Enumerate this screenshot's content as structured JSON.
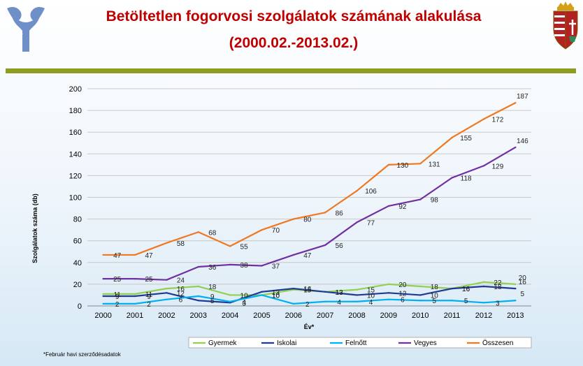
{
  "slide": {
    "title_line1": "Betöltetlen fogorvosi szolgálatok számának alakulása",
    "title_line2": "(2000.02.-2013.02.)",
    "footnote": "*Február  havi szerződésadatok"
  },
  "colors": {
    "title": "#c00000",
    "divider": "#8f9c22",
    "logo": "#6e8fc8"
  },
  "icons": {
    "left_logo": "stylized-tooth-logo-icon",
    "right_logo": "hungarian-coat-of-arms-icon"
  },
  "chart_data": {
    "type": "line",
    "title": "",
    "xlabel": "Év*",
    "ylabel": "Szolgálatok  száma (db)",
    "x": [
      "2000",
      "2001",
      "2002",
      "2003",
      "2004",
      "2005",
      "2006",
      "2007",
      "2008",
      "2009",
      "2010",
      "2011",
      "2012",
      "2013"
    ],
    "ylim": [
      0,
      200
    ],
    "yticks": [
      0,
      20,
      40,
      60,
      80,
      100,
      120,
      140,
      160,
      180,
      200
    ],
    "grid": true,
    "legend_position": "bottom",
    "series": [
      {
        "name": "Gyermek",
        "color": "#92d050",
        "values": [
          11,
          11,
          16,
          18,
          10,
          10,
          15,
          13,
          15,
          20,
          18,
          16,
          22,
          20
        ]
      },
      {
        "name": "Iskolai",
        "color": "#1f3a93",
        "values": [
          9,
          9,
          12,
          5,
          3,
          13,
          16,
          13,
          10,
          12,
          10,
          16,
          18,
          16
        ]
      },
      {
        "name": "Felnőtt",
        "color": "#00b0f0",
        "values": [
          2,
          2,
          6,
          9,
          4,
          10,
          2,
          4,
          4,
          6,
          5,
          5,
          3,
          5
        ]
      },
      {
        "name": "Vegyes",
        "color": "#7030a0",
        "values": [
          25,
          25,
          24,
          36,
          38,
          37,
          47,
          56,
          77,
          92,
          98,
          118,
          129,
          146
        ]
      },
      {
        "name": "Összesen",
        "color": "#f07820",
        "values": [
          47,
          47,
          58,
          68,
          55,
          70,
          80,
          86,
          106,
          130,
          131,
          155,
          172,
          187
        ]
      }
    ]
  }
}
